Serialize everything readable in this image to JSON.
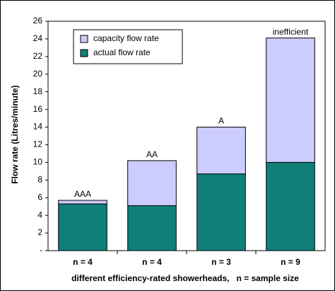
{
  "chart_data": {
    "type": "stacked_bar",
    "categories": [
      "n = 4",
      "n = 4",
      "n = 3",
      "n = 9"
    ],
    "series": [
      {
        "name": "actual flow rate",
        "color": "#0f7f7a",
        "values": [
          5.3,
          5.1,
          8.7,
          10.0
        ]
      },
      {
        "name": "capacity flow rate",
        "color": "#ccccff",
        "values": [
          0.4,
          5.1,
          5.3,
          14.1
        ]
      }
    ],
    "annotations": [
      "AAA",
      "AA",
      "A",
      "inefficient"
    ],
    "x_label": "different efficiency-rated showerheads,   n = sample size",
    "y_label": "Flow rate  (Litres/minute)",
    "ylim": [
      0,
      26
    ],
    "yticks": [
      {
        "value": 0,
        "label": "-"
      },
      2,
      4,
      6,
      8,
      10,
      12,
      14,
      16,
      18,
      20,
      22,
      24,
      26
    ]
  }
}
